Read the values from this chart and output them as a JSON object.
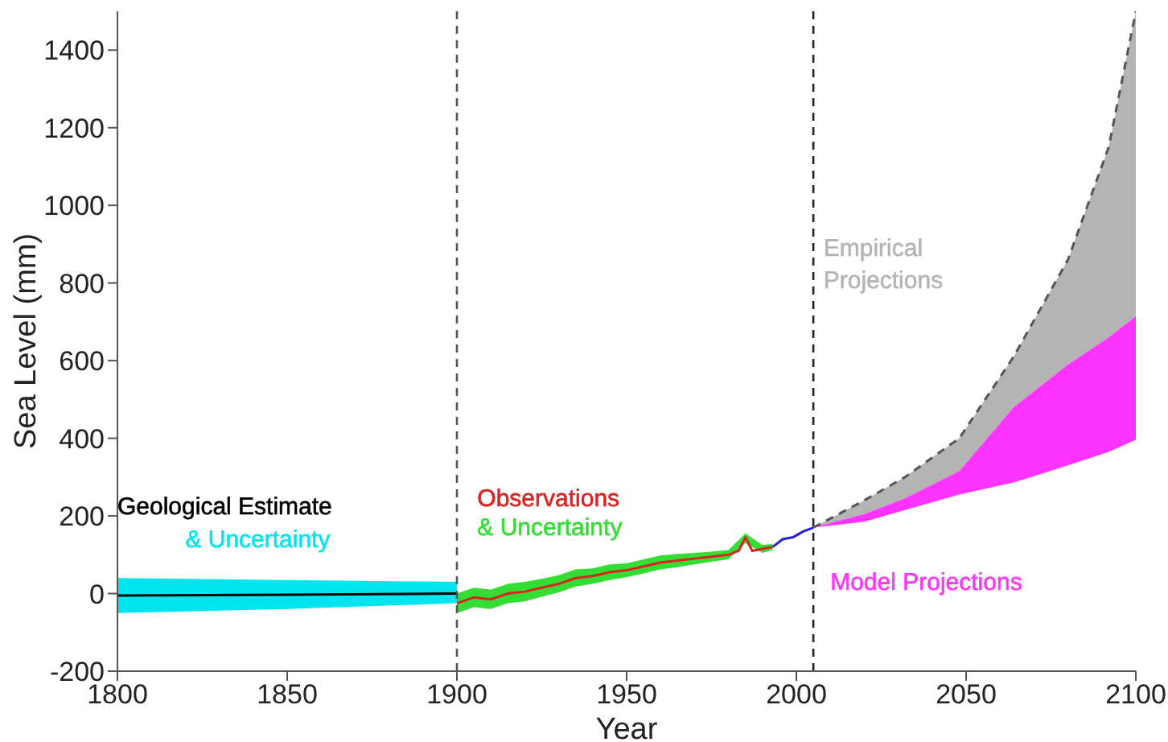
{
  "chart_data": {
    "type": "line",
    "xlabel": "Year",
    "ylabel": "Sea Level (mm)",
    "xlim": [
      1800,
      2100
    ],
    "xticks": [
      1800,
      1850,
      1900,
      1950,
      2000,
      2050,
      2100
    ],
    "ylim": [
      -200,
      1500
    ],
    "yticks": [
      -200,
      0,
      200,
      400,
      600,
      800,
      1000,
      1200,
      1400
    ],
    "grid": false,
    "legend": false,
    "marker": "none",
    "series": [
      {
        "name": "& Uncertainty",
        "color": "#00e5ee",
        "x": [
          1800,
          1850,
          1900
        ],
        "values": [
          null,
          null,
          null
        ],
        "lower": [
          -50,
          -40,
          -25
        ],
        "upper": [
          40,
          35,
          30
        ]
      },
      {
        "name": "Geological Estimate",
        "color": "#000000",
        "x": [
          1800,
          1850,
          1900
        ],
        "values": [
          -5,
          -3,
          0
        ]
      },
      {
        "name": "& Uncertainty",
        "color": "#33dd33",
        "x": [
          1900,
          1905,
          1910,
          1915,
          1920,
          1925,
          1930,
          1935,
          1940,
          1945,
          1950,
          1955,
          1960,
          1965,
          1970,
          1975,
          1980,
          1985,
          1990,
          1993
        ],
        "values": [
          null,
          null,
          null,
          null,
          null,
          null,
          null,
          null,
          null,
          null,
          null,
          null,
          null,
          null,
          null,
          null,
          null,
          null,
          null,
          null
        ],
        "lower": [
          -50,
          -35,
          -40,
          -25,
          -20,
          -8,
          3,
          18,
          25,
          35,
          42,
          52,
          62,
          68,
          75,
          82,
          88,
          130,
          105,
          112
        ],
        "upper": [
          0,
          15,
          10,
          25,
          30,
          38,
          47,
          62,
          65,
          75,
          78,
          88,
          98,
          102,
          105,
          108,
          112,
          155,
          125,
          128
        ]
      },
      {
        "name": "Observations",
        "color": "#dd2222",
        "x": [
          1900,
          1905,
          1910,
          1915,
          1920,
          1925,
          1930,
          1935,
          1940,
          1945,
          1950,
          1955,
          1960,
          1965,
          1970,
          1975,
          1980,
          1983,
          1985,
          1987,
          1990,
          1993
        ],
        "values": [
          -25,
          -10,
          -15,
          0,
          5,
          15,
          25,
          40,
          45,
          55,
          60,
          70,
          80,
          85,
          90,
          95,
          100,
          110,
          145,
          110,
          115,
          120
        ]
      },
      {
        "color": "#2222dd",
        "x": [
          1993,
          1996,
          1999,
          2002,
          2005
        ],
        "values": [
          120,
          140,
          145,
          160,
          170
        ]
      },
      {
        "name": "Empirical Projections",
        "color": "#b4b4b4",
        "x": [
          2005,
          2020,
          2032,
          2048,
          2064,
          2080,
          2092,
          2100
        ],
        "values": [
          null,
          null,
          null,
          null,
          null,
          null,
          null,
          null
        ],
        "lower": [
          170,
          205,
          245,
          315,
          480,
          590,
          660,
          715
        ],
        "upper": [
          170,
          240,
          300,
          400,
          610,
          860,
          1150,
          1500
        ]
      },
      {
        "color": "#555555",
        "line_style": "dashed",
        "x": [
          2005,
          2020,
          2032,
          2048,
          2064,
          2080,
          2092,
          2100
        ],
        "values": [
          170,
          240,
          300,
          400,
          610,
          860,
          1150,
          1500
        ]
      },
      {
        "name": "Model Projections",
        "color": "#ff33ff",
        "x": [
          2005,
          2020,
          2032,
          2048,
          2064,
          2080,
          2092,
          2100
        ],
        "values": [
          null,
          null,
          null,
          null,
          null,
          null,
          null,
          null
        ],
        "lower": [
          170,
          185,
          215,
          255,
          286,
          330,
          365,
          396
        ],
        "upper": [
          170,
          205,
          245,
          315,
          480,
          590,
          660,
          715
        ]
      }
    ],
    "ref_lines": [
      {
        "axis": "x",
        "value": 1900,
        "color": "#555555",
        "line_style": "dashed"
      },
      {
        "axis": "x",
        "value": 2005,
        "color": "#222222",
        "line_style": "dashed"
      }
    ]
  }
}
